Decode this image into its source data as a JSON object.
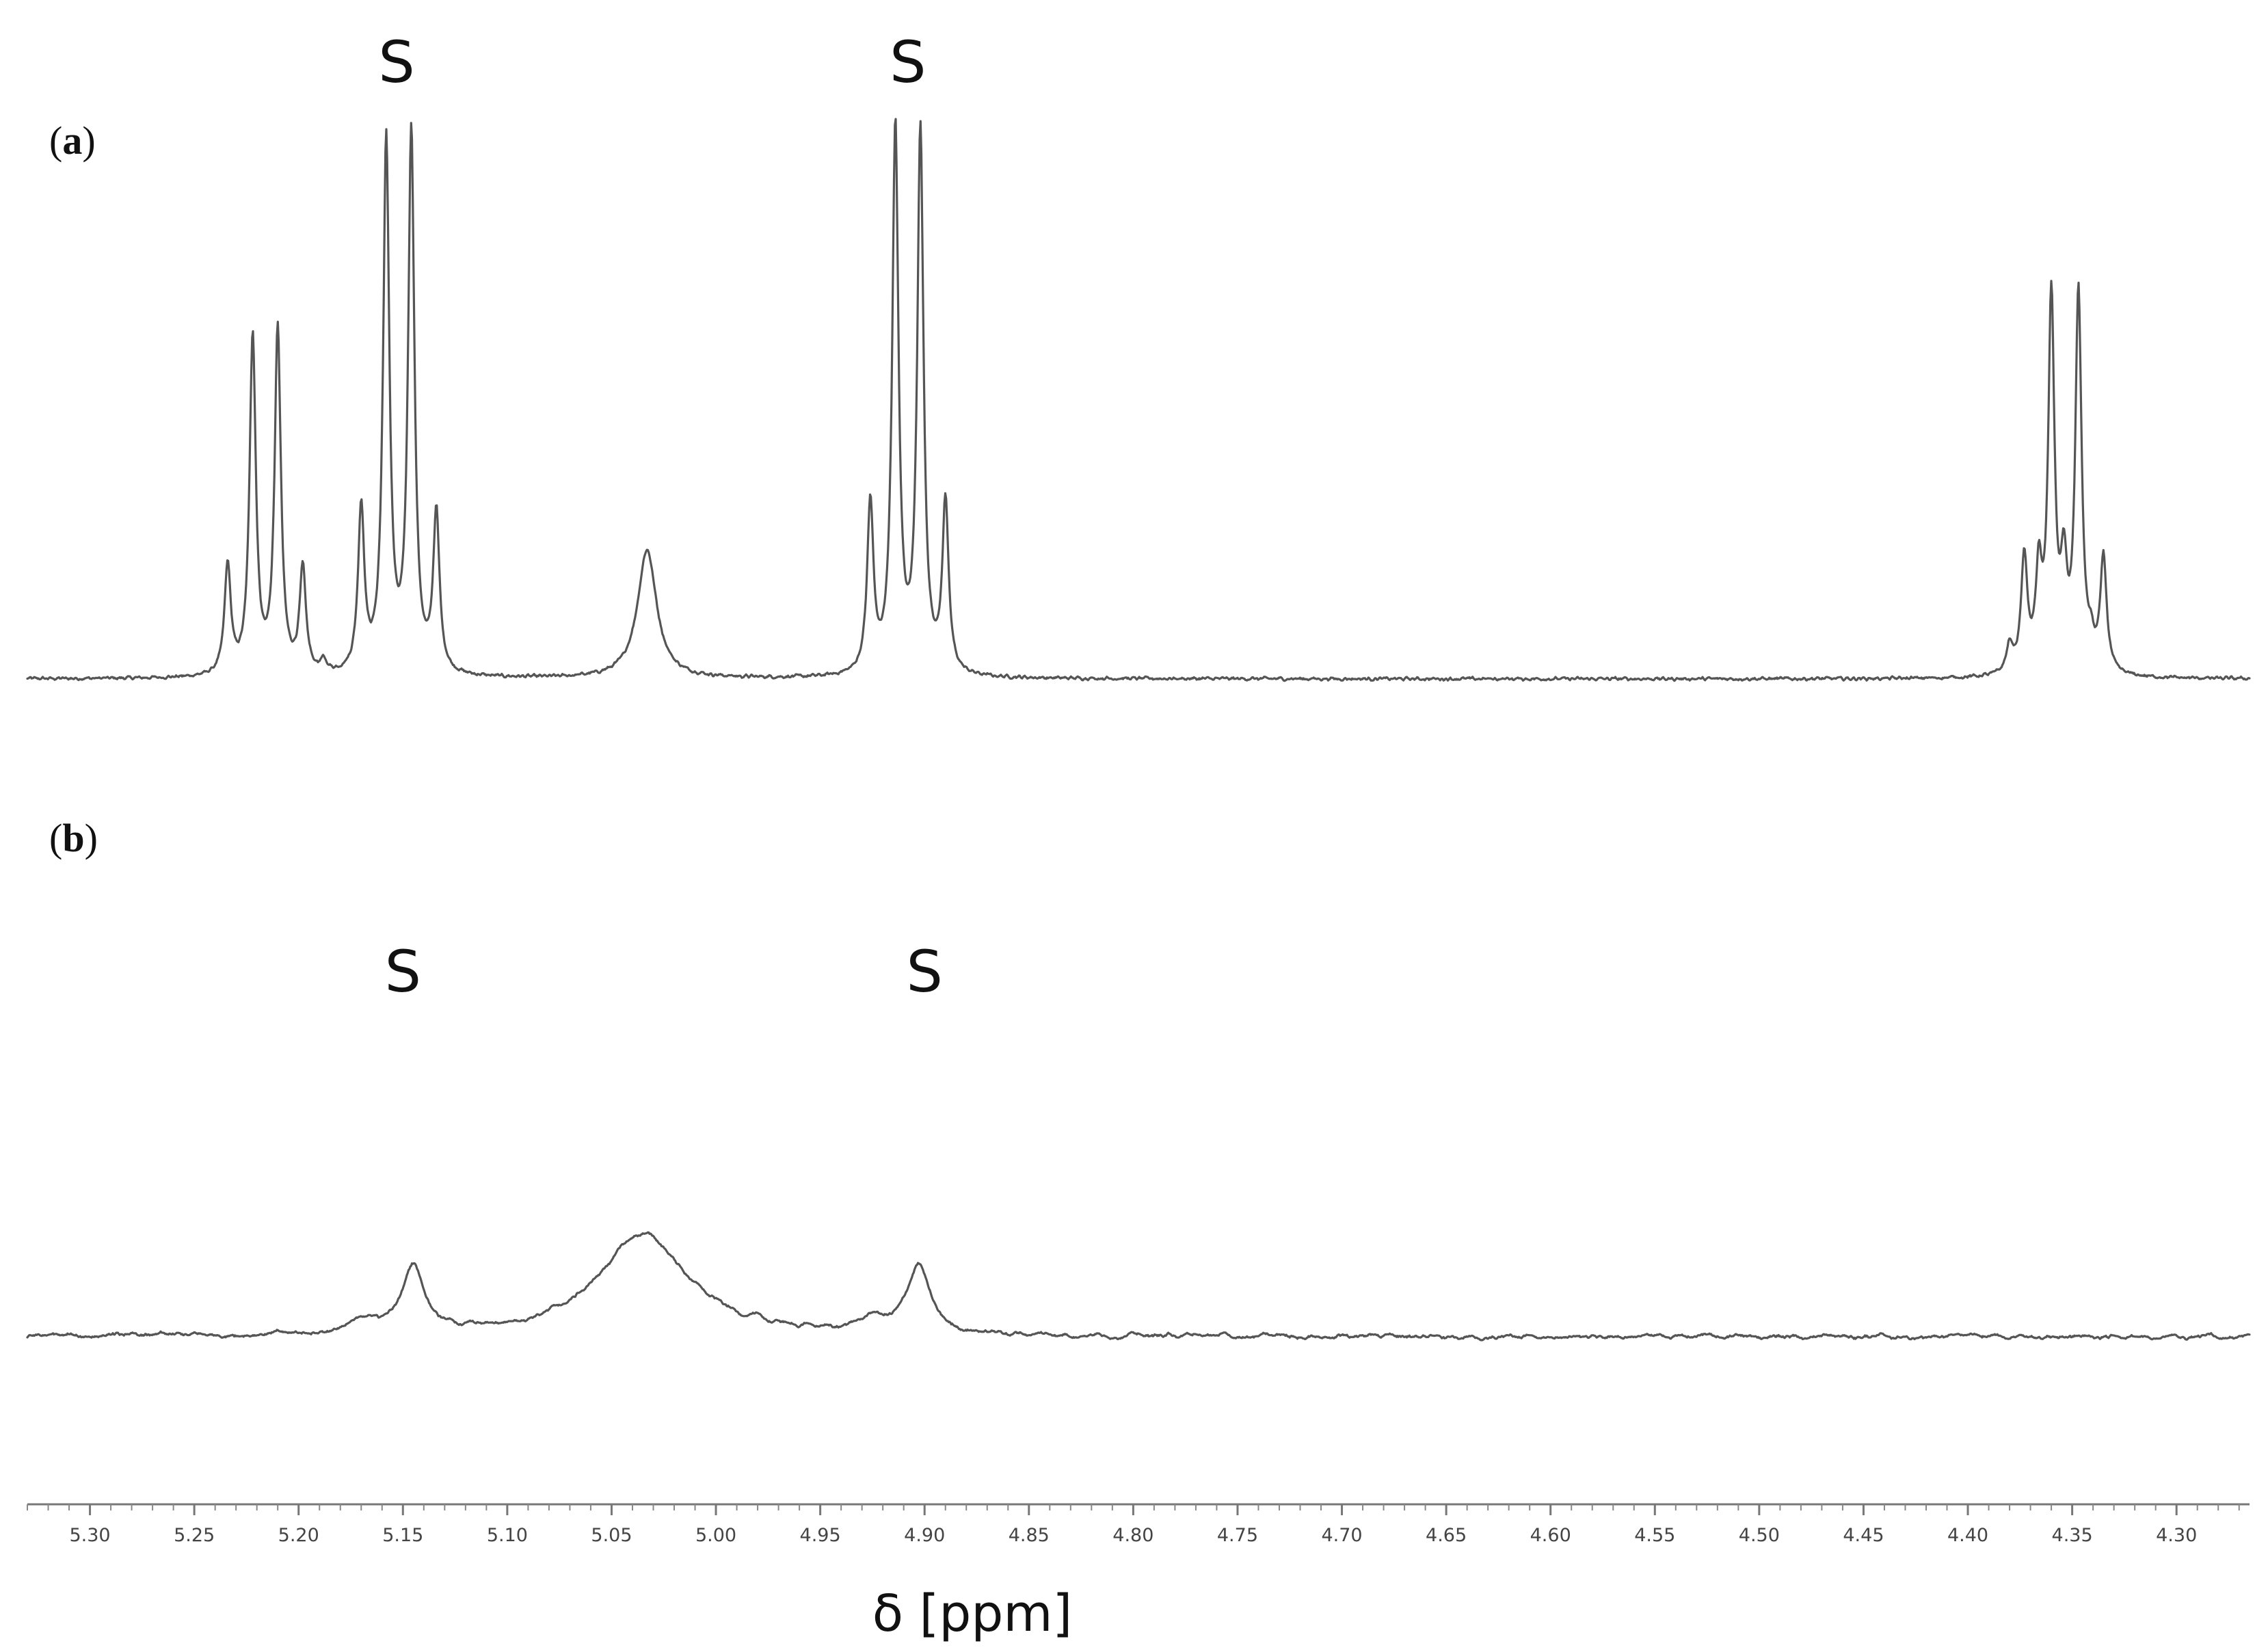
{
  "chart_data": {
    "type": "line",
    "xlabel": "δ [ppm]",
    "xlim": [
      5.33,
      4.265
    ],
    "x_reversed": true,
    "xticks": [
      5.3,
      5.25,
      5.2,
      5.15,
      5.1,
      5.05,
      5.0,
      4.95,
      4.9,
      4.85,
      4.8,
      4.75,
      4.7,
      4.65,
      4.6,
      4.55,
      4.5,
      4.45,
      4.4,
      4.35,
      4.3
    ],
    "xtick_labels": [
      "5.30",
      "5.25",
      "5.20",
      "5.15",
      "5.10",
      "5.05",
      "5.00",
      "4.95",
      "4.90",
      "4.85",
      "4.80",
      "4.75",
      "4.70",
      "4.65",
      "4.60",
      "4.55",
      "4.50",
      "4.45",
      "4.40",
      "4.35",
      "4.30"
    ],
    "minor_tick_step": 0.01,
    "grid": false,
    "color": "#555555",
    "panels": [
      {
        "label": "(a)",
        "label_parts": [
          "(",
          "a",
          ")"
        ],
        "ylim": [
          0,
          1
        ],
        "baseline": 0.03,
        "noise": 0.004,
        "water_center": 5.033,
        "water_width": 0.0055,
        "water_height": 0.235,
        "peak_width": 0.0018,
        "peaks": [
          {
            "x": 5.234,
            "y": 0.2
          },
          {
            "x": 5.222,
            "y": 0.62
          },
          {
            "x": 5.21,
            "y": 0.63
          },
          {
            "x": 5.198,
            "y": 0.19
          },
          {
            "x": 5.188,
            "y": 0.02
          },
          {
            "x": 5.17,
            "y": 0.3
          },
          {
            "x": 5.158,
            "y": 0.97
          },
          {
            "x": 5.146,
            "y": 0.99
          },
          {
            "x": 5.134,
            "y": 0.29
          },
          {
            "x": 4.926,
            "y": 0.31
          },
          {
            "x": 4.914,
            "y": 1.0
          },
          {
            "x": 4.902,
            "y": 0.99
          },
          {
            "x": 4.89,
            "y": 0.31
          },
          {
            "x": 4.38,
            "y": 0.05
          },
          {
            "x": 4.373,
            "y": 0.21
          },
          {
            "x": 4.366,
            "y": 0.17
          },
          {
            "x": 4.36,
            "y": 0.68
          },
          {
            "x": 4.354,
            "y": 0.17
          },
          {
            "x": 4.347,
            "y": 0.69
          },
          {
            "x": 4.341,
            "y": 0.04
          },
          {
            "x": 4.335,
            "y": 0.21
          }
        ],
        "annotations": [
          {
            "text": "S",
            "x": 5.153
          },
          {
            "text": "S",
            "x": 4.908
          }
        ]
      },
      {
        "label": "(b)",
        "label_parts": [
          "(",
          "b",
          ")"
        ],
        "ylim": [
          0,
          1
        ],
        "baseline": 0.03,
        "noise": 0.012,
        "water_center": 5.035,
        "water_width": 0.026,
        "water_height": 0.15,
        "peak_width": 0.0065,
        "peaks": [
          {
            "x": 5.145,
            "y": 0.1
          },
          {
            "x": 4.903,
            "y": 0.1
          },
          {
            "x": 4.925,
            "y": 0.02
          },
          {
            "x": 5.168,
            "y": 0.02
          }
        ],
        "annotations": [
          {
            "text": "S",
            "x": 5.15
          },
          {
            "text": "S",
            "x": 4.9
          }
        ]
      }
    ]
  }
}
